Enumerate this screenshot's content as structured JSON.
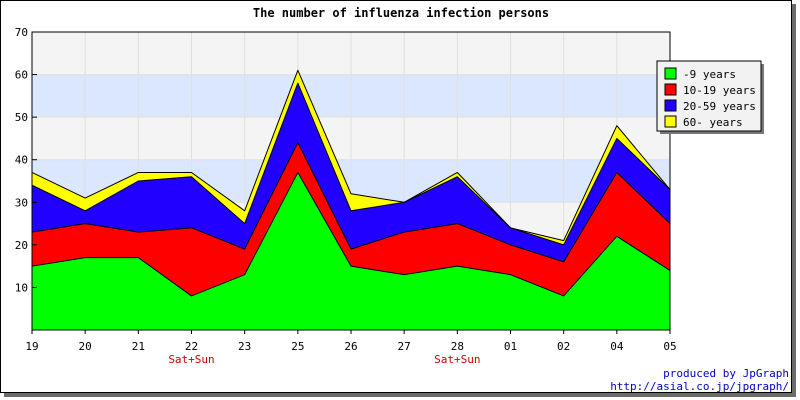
{
  "chart_data": {
    "type": "area",
    "stacked": true,
    "title": "The number of influenza infection persons",
    "xlabel": "",
    "ylabel": "",
    "ylim": [
      0,
      70
    ],
    "yticks": [
      10,
      20,
      30,
      40,
      50,
      60,
      70
    ],
    "categories": [
      "19",
      "20",
      "21",
      "22",
      "23",
      "25",
      "26",
      "27",
      "28",
      "01",
      "02",
      "04",
      "05"
    ],
    "sublabels": [
      {
        "category": "22",
        "text": "Sat+Sun"
      },
      {
        "category": "28",
        "text": "Sat+Sun"
      }
    ],
    "series": [
      {
        "name": "-9 years",
        "color": "#00ff00",
        "values": [
          15,
          17,
          17,
          8,
          13,
          37,
          15,
          13,
          15,
          13,
          8,
          22,
          14
        ]
      },
      {
        "name": "10-19 years",
        "color": "#ff0000",
        "values": [
          8,
          8,
          6,
          16,
          6,
          7,
          4,
          10,
          10,
          7,
          8,
          15,
          11
        ]
      },
      {
        "name": "20-59 years",
        "color": "#2200ff",
        "values": [
          11,
          3,
          12,
          12,
          6,
          14,
          9,
          7,
          11,
          4,
          4,
          8,
          8
        ]
      },
      {
        "name": "60- years",
        "color": "#ffff00",
        "values": [
          3,
          3,
          2,
          1,
          3,
          3,
          4,
          0,
          1,
          0,
          1,
          3,
          0
        ]
      }
    ],
    "grid": true,
    "background_bands": {
      "light": "#f4f4f4",
      "blue": "#dbe6ff"
    },
    "legend_position": "top-right"
  },
  "credits": {
    "line1": "produced by JpGraph",
    "line2": "http://asial.co.jp/jpgraph/"
  }
}
